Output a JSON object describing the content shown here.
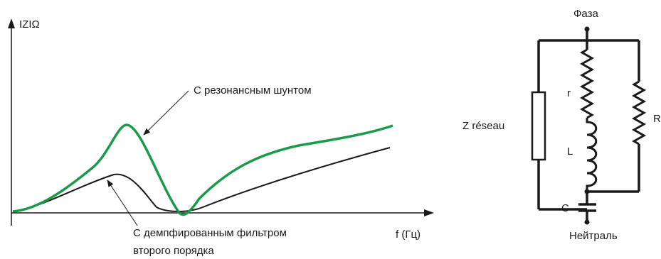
{
  "graph": {
    "y_axis_label": "IZIΩ",
    "x_axis_label": "f (Гц)",
    "curve_resonant_label": "С резонансным шунтом",
    "curve_damped_label_line1": "С демпфированным фильтром",
    "curve_damped_label_line2": "второго порядка",
    "colors": {
      "resonant": "#1a9a4a",
      "damped": "#1a1a1a",
      "axis": "#1a1a1a"
    }
  },
  "circuit": {
    "phase_label": "Фаза",
    "neutral_label": "Нейтраль",
    "z_network_label": "Z réseau",
    "r_label": "r",
    "l_label": "L",
    "c_label": "C",
    "big_r_label": "R"
  }
}
